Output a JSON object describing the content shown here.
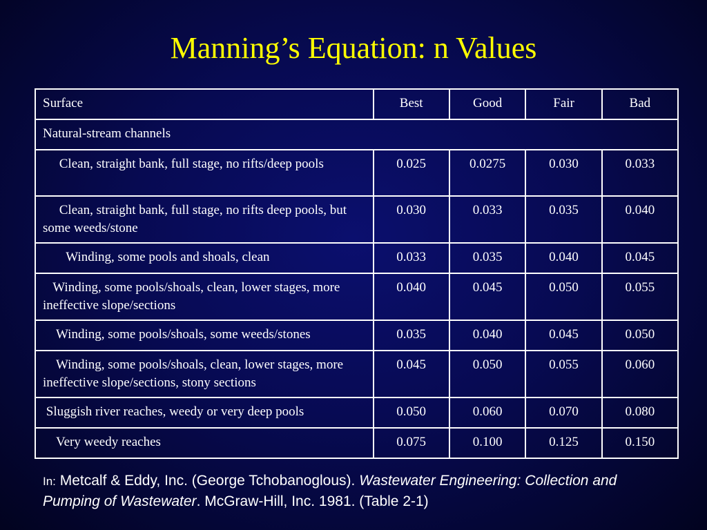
{
  "title": "Manning’s Equation: n Values",
  "table": {
    "headers": [
      "Surface",
      "Best",
      "Good",
      "Fair",
      "Bad"
    ],
    "group_label": "Natural-stream channels",
    "rows": [
      {
        "surface": "     Clean, straight bank, full stage, no rifts/deep pools",
        "values": [
          "0.025",
          "0.0275",
          "0.030",
          "0.033"
        ]
      },
      {
        "surface": "     Clean, straight bank, full stage, no rifts deep pools, but some weeds/stone",
        "values": [
          "0.030",
          "0.033",
          "0.035",
          "0.040"
        ]
      },
      {
        "surface": "       Winding, some pools and shoals, clean",
        "values": [
          "0.033",
          "0.035",
          "0.040",
          "0.045"
        ]
      },
      {
        "surface": "   Winding, some pools/shoals, clean, lower stages, more ineffective slope/sections",
        "values": [
          "0.040",
          "0.045",
          "0.050",
          "0.055"
        ]
      },
      {
        "surface": "    Winding, some pools/shoals, some weeds/stones",
        "values": [
          "0.035",
          "0.040",
          "0.045",
          "0.050"
        ]
      },
      {
        "surface": "    Winding, some pools/shoals, clean, lower stages, more ineffective slope/sections, stony sections",
        "values": [
          "0.045",
          "0.050",
          "0.055",
          "0.060"
        ]
      },
      {
        "surface": " Sluggish river reaches, weedy or very deep pools",
        "values": [
          "0.050",
          "0.060",
          "0.070",
          "0.080"
        ]
      },
      {
        "surface": "    Very weedy reaches",
        "values": [
          "0.075",
          "0.100",
          "0.125",
          "0.150"
        ]
      }
    ]
  },
  "citation": {
    "prefix": "In:",
    "authors": " Metcalf & Eddy, Inc. (George Tchobanoglous). ",
    "book_title": "Wastewater Engineering: Collection and Pumping of Wastewater",
    "publisher": ". McGraw-Hill, Inc. 1981. (Table 2-1)"
  },
  "colors": {
    "title": "#ffff00",
    "background": "#070a52",
    "text": "#ffffff"
  }
}
